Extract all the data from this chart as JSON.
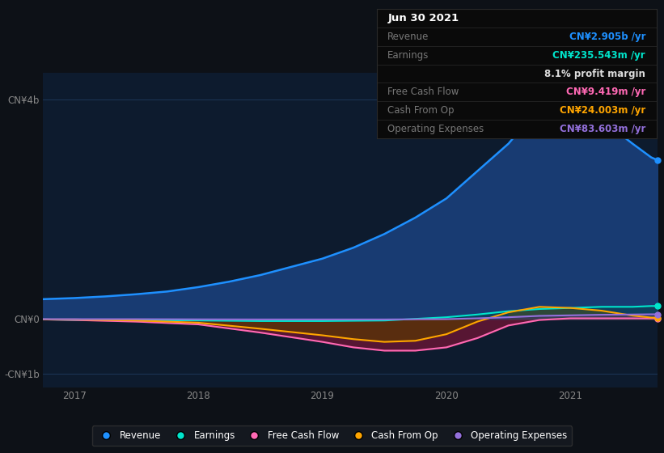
{
  "bg_color": "#0d1117",
  "plot_bg_color": "#0d1b2e",
  "grid_color": "#1e3a5f",
  "x_min": 2016.75,
  "x_max": 2021.7,
  "y_min": -1250000000.0,
  "y_max": 4500000000.0,
  "ytick_labels": [
    "CN¥4b",
    "CN¥0",
    "-CN¥1b"
  ],
  "ytick_values": [
    4000000000.0,
    0,
    -1000000000.0
  ],
  "xtick_labels": [
    "2017",
    "2018",
    "2019",
    "2020",
    "2021"
  ],
  "xtick_values": [
    2017,
    2018,
    2019,
    2020,
    2021
  ],
  "revenue_x": [
    2016.75,
    2017.0,
    2017.25,
    2017.5,
    2017.75,
    2018.0,
    2018.25,
    2018.5,
    2018.75,
    2019.0,
    2019.25,
    2019.5,
    2019.75,
    2020.0,
    2020.25,
    2020.5,
    2020.65,
    2020.75,
    2020.85,
    2021.0,
    2021.15,
    2021.3,
    2021.5,
    2021.65,
    2021.7
  ],
  "revenue_y": [
    360000000.0,
    380000000.0,
    410000000.0,
    450000000.0,
    500000000.0,
    580000000.0,
    680000000.0,
    800000000.0,
    950000000.0,
    1100000000.0,
    1300000000.0,
    1550000000.0,
    1850000000.0,
    2200000000.0,
    2700000000.0,
    3200000000.0,
    3600000000.0,
    3750000000.0,
    3820000000.0,
    3780000000.0,
    3700000000.0,
    3550000000.0,
    3200000000.0,
    2950000000.0,
    2900000000.0
  ],
  "earnings_x": [
    2016.75,
    2017.0,
    2017.5,
    2018.0,
    2018.5,
    2019.0,
    2019.5,
    2020.0,
    2020.25,
    2020.5,
    2020.75,
    2021.0,
    2021.25,
    2021.5,
    2021.65,
    2021.7
  ],
  "earnings_y": [
    -10000000.0,
    -20000000.0,
    -20000000.0,
    -30000000.0,
    -40000000.0,
    -40000000.0,
    -30000000.0,
    30000000.0,
    80000000.0,
    140000000.0,
    180000000.0,
    200000000.0,
    220000000.0,
    220000000.0,
    235000000.0,
    235000000.0
  ],
  "fcf_x": [
    2016.75,
    2017.0,
    2017.5,
    2018.0,
    2018.5,
    2019.0,
    2019.25,
    2019.5,
    2019.75,
    2020.0,
    2020.25,
    2020.5,
    2020.75,
    2021.0,
    2021.25,
    2021.5,
    2021.65,
    2021.7
  ],
  "fcf_y": [
    -10000000.0,
    -20000000.0,
    -50000000.0,
    -100000000.0,
    -250000000.0,
    -420000000.0,
    -520000000.0,
    -580000000.0,
    -580000000.0,
    -520000000.0,
    -350000000.0,
    -120000000.0,
    -20000000.0,
    10000000.0,
    10000000.0,
    10000000.0,
    9000000.0,
    9000000.0
  ],
  "cashop_x": [
    2016.75,
    2017.0,
    2017.5,
    2018.0,
    2018.5,
    2019.0,
    2019.25,
    2019.5,
    2019.75,
    2020.0,
    2020.25,
    2020.5,
    2020.75,
    2021.0,
    2021.25,
    2021.5,
    2021.65,
    2021.7
  ],
  "cashop_y": [
    -10000000.0,
    -10000000.0,
    -30000000.0,
    -70000000.0,
    -180000000.0,
    -300000000.0,
    -370000000.0,
    -420000000.0,
    -400000000.0,
    -280000000.0,
    -50000000.0,
    120000000.0,
    220000000.0,
    200000000.0,
    150000000.0,
    60000000.0,
    24000000.0,
    24000000.0
  ],
  "opex_x": [
    2016.75,
    2017.0,
    2017.5,
    2018.0,
    2018.5,
    2019.0,
    2019.5,
    2020.0,
    2020.25,
    2020.5,
    2020.75,
    2021.0,
    2021.25,
    2021.5,
    2021.65,
    2021.7
  ],
  "opex_y": [
    -5000000.0,
    -5000000.0,
    -5000000.0,
    -8000000.0,
    -10000000.0,
    -10000000.0,
    -10000000.0,
    -5000000.0,
    10000000.0,
    30000000.0,
    55000000.0,
    65000000.0,
    75000000.0,
    80000000.0,
    84000000.0,
    84000000.0
  ],
  "revenue_color": "#1e90ff",
  "earnings_color": "#00e5cc",
  "fcf_color": "#ff69b4",
  "cashop_color": "#ffa500",
  "opex_color": "#9370db",
  "revenue_fill": "#1a3f7a",
  "earnings_fill_pos": "#004a40",
  "earnings_fill_neg": "#3a1020",
  "fcf_fill": "#6b1535",
  "cashop_fill_pos": "#7a5000",
  "cashop_fill_neg": "#5a3800",
  "opex_fill_pos": "#4a3075",
  "opex_fill_neg": "#3a2060",
  "tooltip_date": "Jun 30 2021",
  "tooltip_revenue_label": "Revenue",
  "tooltip_revenue_val": "CN¥2.905b /yr",
  "tooltip_earnings_label": "Earnings",
  "tooltip_earnings_val": "CN¥235.543m /yr",
  "tooltip_margin": "8.1% profit margin",
  "tooltip_fcf_label": "Free Cash Flow",
  "tooltip_fcf_val": "CN¥9.419m /yr",
  "tooltip_cashop_label": "Cash From Op",
  "tooltip_cashop_val": "CN¥24.003m /yr",
  "tooltip_opex_label": "Operating Expenses",
  "tooltip_opex_val": "CN¥83.603m /yr",
  "legend_items": [
    "Revenue",
    "Earnings",
    "Free Cash Flow",
    "Cash From Op",
    "Operating Expenses"
  ],
  "legend_colors": [
    "#1e90ff",
    "#00e5cc",
    "#ff69b4",
    "#ffa500",
    "#9370db"
  ]
}
